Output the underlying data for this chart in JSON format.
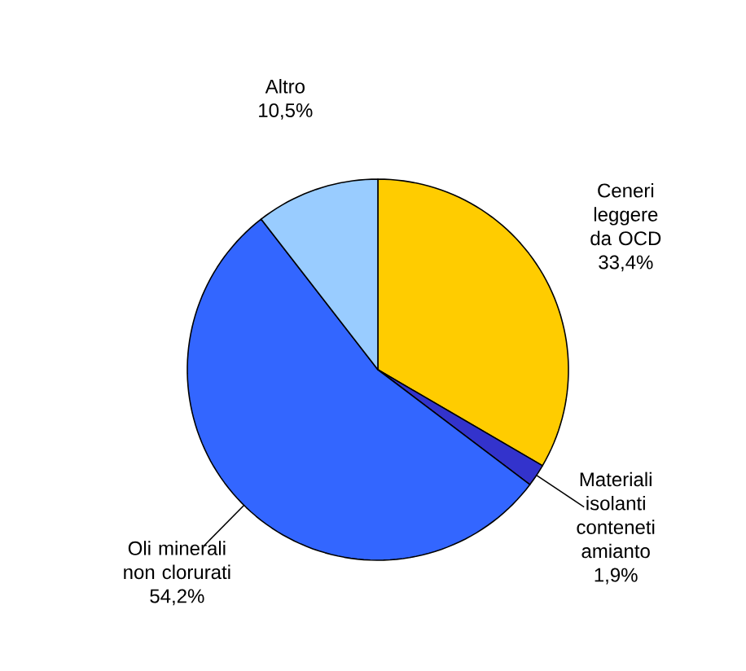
{
  "chart_data": {
    "type": "pie",
    "categories": [
      "Ceneri leggere da OCD",
      "Materiali isolanti conteneti amianto",
      "Oli minerali non clorurati",
      "Altro"
    ],
    "values": [
      33.4,
      1.9,
      54.2,
      10.5
    ],
    "value_labels": [
      "33,4%",
      "1,9%",
      "54,2%",
      "10,5%"
    ],
    "colors": [
      "#ffcc00",
      "#3333cc",
      "#3366ff",
      "#99ccff"
    ]
  }
}
